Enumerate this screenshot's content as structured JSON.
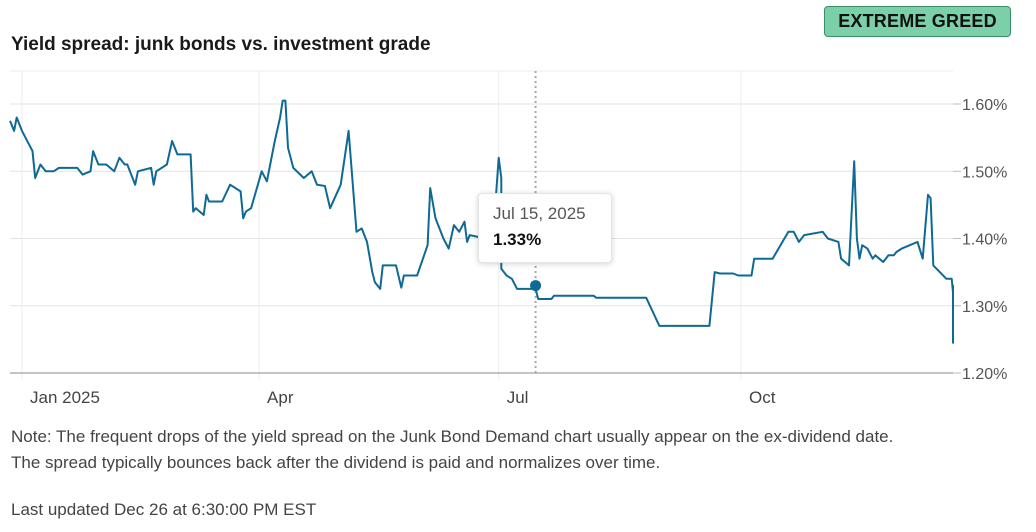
{
  "header": {
    "title": "Yield spread: junk bonds vs. investment grade",
    "badge": "EXTREME GREED",
    "badge_color": "#7cd0a9"
  },
  "tooltip": {
    "date": "Jul 15, 2025",
    "value": "1.33%"
  },
  "footer": {
    "note_line1": "Note: The frequent drops of the yield spread on the Junk Bond Demand chart usually appear on the ex-dividend date.",
    "note_line2": "The spread typically bounces back after the dividend is paid and normalizes over time.",
    "updated": "Last updated Dec 26 at 6:30:00 PM EST"
  },
  "chart_data": {
    "type": "line",
    "title": "Yield spread: junk bonds vs. investment grade",
    "xlabel": "",
    "ylabel": "",
    "line_color": "#0e6a94",
    "ylim": [
      1.2,
      1.65
    ],
    "yticks": [
      1.2,
      1.3,
      1.4,
      1.5,
      1.6
    ],
    "ytick_labels": [
      "1.20%",
      "1.30%",
      "1.40%",
      "1.50%",
      "1.60%"
    ],
    "xlim": [
      "2024-12-26",
      "2025-12-26"
    ],
    "xticks": [
      {
        "date": "2025-01-01",
        "label": "Jan 2025"
      },
      {
        "date": "2025-04-01",
        "label": "Apr"
      },
      {
        "date": "2025-07-01",
        "label": "Jul"
      },
      {
        "date": "2025-10-01",
        "label": "Oct"
      }
    ],
    "grid": true,
    "highlight": {
      "date": "2025-07-15",
      "value": 1.33
    },
    "series": [
      {
        "points": [
          [
            "2024-12-26",
            1.575
          ],
          [
            "2024-12-29",
            1.56
          ],
          [
            "2024-12-30",
            1.58
          ],
          [
            "2025-01-01",
            1.56
          ],
          [
            "2025-01-05",
            1.53
          ],
          [
            "2025-01-06",
            1.49
          ],
          [
            "2025-01-08",
            1.51
          ],
          [
            "2025-01-10",
            1.5
          ],
          [
            "2025-01-13",
            1.5
          ],
          [
            "2025-01-15",
            1.505
          ],
          [
            "2025-01-22",
            1.505
          ],
          [
            "2025-01-24",
            1.495
          ],
          [
            "2025-01-27",
            1.5
          ],
          [
            "2025-01-28",
            1.53
          ],
          [
            "2025-01-30",
            1.51
          ],
          [
            "2025-02-02",
            1.51
          ],
          [
            "2025-02-05",
            1.5
          ],
          [
            "2025-02-07",
            1.52
          ],
          [
            "2025-02-09",
            1.51
          ],
          [
            "2025-02-10",
            1.51
          ],
          [
            "2025-02-13",
            1.48
          ],
          [
            "2025-02-14",
            1.5
          ],
          [
            "2025-02-19",
            1.505
          ],
          [
            "2025-02-20",
            1.48
          ],
          [
            "2025-02-21",
            1.5
          ],
          [
            "2025-02-25",
            1.51
          ],
          [
            "2025-02-27",
            1.545
          ],
          [
            "2025-03-01",
            1.525
          ],
          [
            "2025-03-06",
            1.525
          ],
          [
            "2025-03-07",
            1.44
          ],
          [
            "2025-03-08",
            1.445
          ],
          [
            "2025-03-11",
            1.435
          ],
          [
            "2025-03-12",
            1.465
          ],
          [
            "2025-03-13",
            1.455
          ],
          [
            "2025-03-18",
            1.455
          ],
          [
            "2025-03-21",
            1.48
          ],
          [
            "2025-03-25",
            1.47
          ],
          [
            "2025-03-26",
            1.43
          ],
          [
            "2025-03-27",
            1.44
          ],
          [
            "2025-03-29",
            1.445
          ],
          [
            "2025-04-02",
            1.5
          ],
          [
            "2025-04-04",
            1.485
          ],
          [
            "2025-04-07",
            1.545
          ],
          [
            "2025-04-09",
            1.58
          ],
          [
            "2025-04-10",
            1.605
          ],
          [
            "2025-04-11",
            1.605
          ],
          [
            "2025-04-12",
            1.535
          ],
          [
            "2025-04-14",
            1.505
          ],
          [
            "2025-04-18",
            1.49
          ],
          [
            "2025-04-21",
            1.5
          ],
          [
            "2025-04-23",
            1.48
          ],
          [
            "2025-04-26",
            1.478
          ],
          [
            "2025-04-28",
            1.445
          ],
          [
            "2025-05-02",
            1.48
          ],
          [
            "2025-05-05",
            1.56
          ],
          [
            "2025-05-08",
            1.41
          ],
          [
            "2025-05-10",
            1.415
          ],
          [
            "2025-05-12",
            1.395
          ],
          [
            "2025-05-14",
            1.35
          ],
          [
            "2025-05-15",
            1.335
          ],
          [
            "2025-05-17",
            1.325
          ],
          [
            "2025-05-18",
            1.36
          ],
          [
            "2025-05-22",
            1.36
          ],
          [
            "2025-05-23",
            1.36
          ],
          [
            "2025-05-25",
            1.327
          ],
          [
            "2025-05-26",
            1.345
          ],
          [
            "2025-05-31",
            1.345
          ],
          [
            "2025-06-04",
            1.39
          ],
          [
            "2025-06-05",
            1.475
          ],
          [
            "2025-06-07",
            1.43
          ],
          [
            "2025-06-10",
            1.4
          ],
          [
            "2025-06-12",
            1.385
          ],
          [
            "2025-06-14",
            1.42
          ],
          [
            "2025-06-16",
            1.41
          ],
          [
            "2025-06-18",
            1.425
          ],
          [
            "2025-06-19",
            1.395
          ],
          [
            "2025-06-20",
            1.405
          ],
          [
            "2025-06-26",
            1.4
          ],
          [
            "2025-06-29",
            1.41
          ],
          [
            "2025-07-01",
            1.52
          ],
          [
            "2025-07-02",
            1.49
          ],
          [
            "2025-07-02",
            1.355
          ],
          [
            "2025-07-04",
            1.345
          ],
          [
            "2025-07-06",
            1.34
          ],
          [
            "2025-07-08",
            1.325
          ],
          [
            "2025-07-15",
            1.325
          ],
          [
            "2025-07-16",
            1.31
          ],
          [
            "2025-07-21",
            1.31
          ],
          [
            "2025-07-22",
            1.315
          ],
          [
            "2025-08-06",
            1.315
          ],
          [
            "2025-08-07",
            1.312
          ],
          [
            "2025-08-26",
            1.312
          ],
          [
            "2025-08-31",
            1.27
          ],
          [
            "2025-09-19",
            1.27
          ],
          [
            "2025-09-21",
            1.35
          ],
          [
            "2025-09-23",
            1.348
          ],
          [
            "2025-09-28",
            1.348
          ],
          [
            "2025-09-30",
            1.345
          ],
          [
            "2025-10-05",
            1.345
          ],
          [
            "2025-10-06",
            1.37
          ],
          [
            "2025-10-13",
            1.37
          ],
          [
            "2025-10-19",
            1.41
          ],
          [
            "2025-10-21",
            1.41
          ],
          [
            "2025-10-23",
            1.395
          ],
          [
            "2025-10-25",
            1.405
          ],
          [
            "2025-11-01",
            1.41
          ],
          [
            "2025-11-03",
            1.4
          ],
          [
            "2025-11-07",
            1.395
          ],
          [
            "2025-11-08",
            1.37
          ],
          [
            "2025-11-11",
            1.36
          ],
          [
            "2025-11-13",
            1.515
          ],
          [
            "2025-11-14",
            1.4
          ],
          [
            "2025-11-15",
            1.37
          ],
          [
            "2025-11-16",
            1.39
          ],
          [
            "2025-11-18",
            1.385
          ],
          [
            "2025-11-20",
            1.37
          ],
          [
            "2025-11-21",
            1.375
          ],
          [
            "2025-11-24",
            1.365
          ],
          [
            "2025-11-26",
            1.375
          ],
          [
            "2025-11-28",
            1.375
          ],
          [
            "2025-11-29",
            1.38
          ],
          [
            "2025-12-01",
            1.385
          ],
          [
            "2025-12-07",
            1.395
          ],
          [
            "2025-12-09",
            1.37
          ],
          [
            "2025-12-11",
            1.465
          ],
          [
            "2025-12-12",
            1.46
          ],
          [
            "2025-12-13",
            1.36
          ],
          [
            "2025-12-18",
            1.34
          ],
          [
            "2025-12-20",
            1.34
          ],
          [
            "2025-12-21",
            1.32
          ],
          [
            "2025-12-25",
            1.33
          ],
          [
            "2025-12-26",
            1.33
          ],
          [
            "2025-12-27",
            1.285
          ],
          [
            "2025-12-29",
            1.245
          ],
          [
            "2025-12-31",
            1.255
          ],
          [
            "2026-01-03",
            1.255
          ]
        ]
      }
    ]
  }
}
